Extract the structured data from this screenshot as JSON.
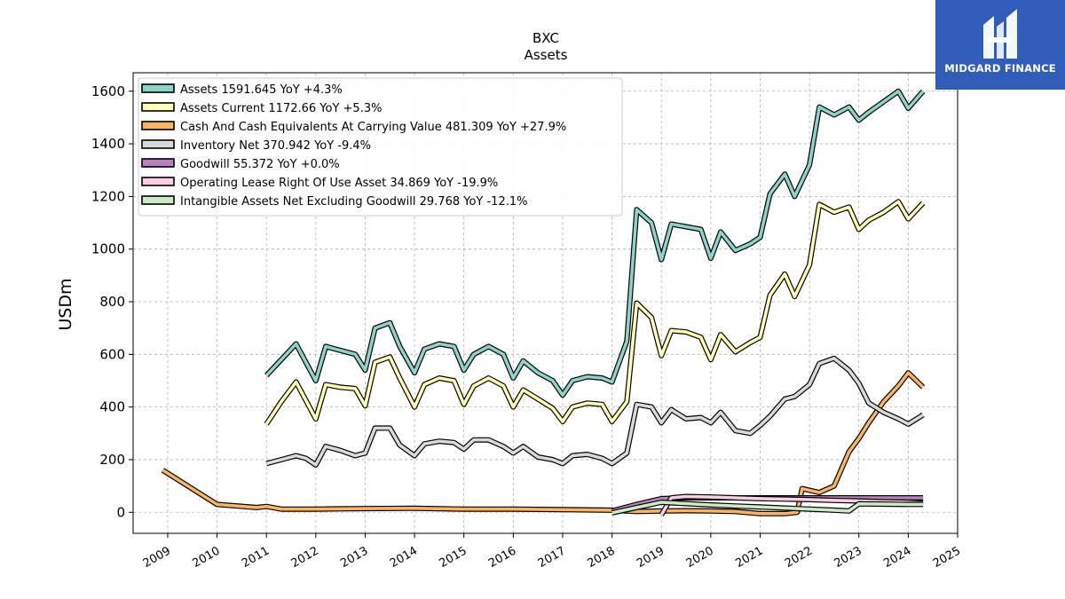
{
  "chart_data": {
    "type": "line",
    "title": "BXC",
    "subtitle": "Assets",
    "ylabel": "USDm",
    "xlim": [
      2008.3,
      2025.0
    ],
    "ylim": [
      -80,
      1670
    ],
    "xticks": [
      2009,
      2010,
      2011,
      2012,
      2013,
      2014,
      2015,
      2016,
      2017,
      2018,
      2019,
      2020,
      2021,
      2022,
      2023,
      2024,
      2025
    ],
    "yticks": [
      0,
      200,
      400,
      600,
      800,
      1000,
      1200,
      1400,
      1600
    ],
    "grid": true,
    "legend_position": "top-left",
    "series": [
      {
        "name": "Assets",
        "legend": "Assets  1591.645 YoY +4.3%",
        "color": "#8dd3c7",
        "points": [
          [
            2011.0,
            520
          ],
          [
            2011.3,
            580
          ],
          [
            2011.6,
            640
          ],
          [
            2012.0,
            500
          ],
          [
            2012.2,
            630
          ],
          [
            2012.5,
            615
          ],
          [
            2012.8,
            600
          ],
          [
            2013.0,
            540
          ],
          [
            2013.2,
            700
          ],
          [
            2013.5,
            720
          ],
          [
            2013.7,
            630
          ],
          [
            2014.0,
            530
          ],
          [
            2014.2,
            620
          ],
          [
            2014.5,
            640
          ],
          [
            2014.8,
            630
          ],
          [
            2015.0,
            540
          ],
          [
            2015.2,
            600
          ],
          [
            2015.5,
            630
          ],
          [
            2015.8,
            600
          ],
          [
            2016.0,
            510
          ],
          [
            2016.2,
            575
          ],
          [
            2016.5,
            530
          ],
          [
            2016.8,
            500
          ],
          [
            2017.0,
            445
          ],
          [
            2017.2,
            500
          ],
          [
            2017.5,
            515
          ],
          [
            2017.8,
            510
          ],
          [
            2018.0,
            495
          ],
          [
            2018.3,
            650
          ],
          [
            2018.5,
            1150
          ],
          [
            2018.8,
            1100
          ],
          [
            2019.0,
            960
          ],
          [
            2019.2,
            1095
          ],
          [
            2019.5,
            1085
          ],
          [
            2019.8,
            1075
          ],
          [
            2020.0,
            965
          ],
          [
            2020.2,
            1065
          ],
          [
            2020.5,
            995
          ],
          [
            2020.8,
            1020
          ],
          [
            2021.0,
            1045
          ],
          [
            2021.2,
            1210
          ],
          [
            2021.5,
            1285
          ],
          [
            2021.7,
            1200
          ],
          [
            2022.0,
            1320
          ],
          [
            2022.2,
            1540
          ],
          [
            2022.5,
            1510
          ],
          [
            2022.8,
            1540
          ],
          [
            2023.0,
            1490
          ],
          [
            2023.2,
            1520
          ],
          [
            2023.5,
            1560
          ],
          [
            2023.8,
            1600
          ],
          [
            2024.0,
            1535
          ],
          [
            2024.3,
            1600
          ]
        ]
      },
      {
        "name": "Assets Current",
        "legend": "Assets Current  1172.66 YoY +5.3%",
        "color": "#ffffb3",
        "points": [
          [
            2011.0,
            335
          ],
          [
            2011.3,
            420
          ],
          [
            2011.6,
            495
          ],
          [
            2012.0,
            355
          ],
          [
            2012.2,
            485
          ],
          [
            2012.5,
            475
          ],
          [
            2012.8,
            470
          ],
          [
            2013.0,
            405
          ],
          [
            2013.2,
            570
          ],
          [
            2013.5,
            590
          ],
          [
            2013.7,
            510
          ],
          [
            2014.0,
            400
          ],
          [
            2014.2,
            485
          ],
          [
            2014.5,
            510
          ],
          [
            2014.8,
            500
          ],
          [
            2015.0,
            410
          ],
          [
            2015.2,
            480
          ],
          [
            2015.5,
            510
          ],
          [
            2015.8,
            480
          ],
          [
            2016.0,
            400
          ],
          [
            2016.2,
            465
          ],
          [
            2016.5,
            430
          ],
          [
            2016.8,
            395
          ],
          [
            2017.0,
            345
          ],
          [
            2017.2,
            400
          ],
          [
            2017.5,
            415
          ],
          [
            2017.8,
            410
          ],
          [
            2018.0,
            345
          ],
          [
            2018.3,
            420
          ],
          [
            2018.5,
            795
          ],
          [
            2018.8,
            740
          ],
          [
            2019.0,
            595
          ],
          [
            2019.2,
            690
          ],
          [
            2019.5,
            685
          ],
          [
            2019.8,
            665
          ],
          [
            2020.0,
            580
          ],
          [
            2020.2,
            675
          ],
          [
            2020.5,
            610
          ],
          [
            2020.8,
            645
          ],
          [
            2021.0,
            665
          ],
          [
            2021.2,
            825
          ],
          [
            2021.5,
            905
          ],
          [
            2021.7,
            820
          ],
          [
            2022.0,
            940
          ],
          [
            2022.2,
            1170
          ],
          [
            2022.5,
            1140
          ],
          [
            2022.8,
            1160
          ],
          [
            2023.0,
            1075
          ],
          [
            2023.2,
            1110
          ],
          [
            2023.5,
            1140
          ],
          [
            2023.8,
            1180
          ],
          [
            2024.0,
            1115
          ],
          [
            2024.3,
            1175
          ]
        ]
      },
      {
        "name": "Cash And Cash Equivalents At Carrying Value",
        "legend": "Cash And Cash Equivalents At Carrying Value  481.309 YoY +27.9%",
        "color": "#fdb462",
        "points": [
          [
            2008.9,
            160
          ],
          [
            2010.0,
            30
          ],
          [
            2010.8,
            18
          ],
          [
            2011.0,
            22
          ],
          [
            2011.3,
            12
          ],
          [
            2012.0,
            12
          ],
          [
            2013.0,
            14
          ],
          [
            2014.0,
            15
          ],
          [
            2015.0,
            12
          ],
          [
            2016.0,
            12
          ],
          [
            2017.0,
            10
          ],
          [
            2018.0,
            8
          ],
          [
            2018.5,
            3
          ],
          [
            2019.0,
            5
          ],
          [
            2019.5,
            6
          ],
          [
            2020.0,
            5
          ],
          [
            2020.5,
            3
          ],
          [
            2021.0,
            -5
          ],
          [
            2021.5,
            -5
          ],
          [
            2021.75,
            0
          ],
          [
            2021.85,
            90
          ],
          [
            2022.2,
            75
          ],
          [
            2022.5,
            100
          ],
          [
            2022.8,
            230
          ],
          [
            2023.0,
            280
          ],
          [
            2023.2,
            340
          ],
          [
            2023.5,
            420
          ],
          [
            2023.8,
            480
          ],
          [
            2024.0,
            530
          ],
          [
            2024.3,
            475
          ]
        ]
      },
      {
        "name": "Inventory Net",
        "legend": "Inventory Net  370.942 YoY -9.4%",
        "color": "#d9d9d9",
        "points": [
          [
            2011.0,
            185
          ],
          [
            2011.3,
            200
          ],
          [
            2011.6,
            215
          ],
          [
            2011.8,
            205
          ],
          [
            2012.0,
            180
          ],
          [
            2012.2,
            250
          ],
          [
            2012.5,
            235
          ],
          [
            2012.8,
            215
          ],
          [
            2013.0,
            225
          ],
          [
            2013.2,
            320
          ],
          [
            2013.5,
            320
          ],
          [
            2013.7,
            255
          ],
          [
            2014.0,
            215
          ],
          [
            2014.2,
            260
          ],
          [
            2014.5,
            270
          ],
          [
            2014.8,
            265
          ],
          [
            2015.0,
            240
          ],
          [
            2015.2,
            275
          ],
          [
            2015.5,
            275
          ],
          [
            2015.8,
            250
          ],
          [
            2016.0,
            225
          ],
          [
            2016.2,
            250
          ],
          [
            2016.5,
            210
          ],
          [
            2016.8,
            200
          ],
          [
            2017.0,
            185
          ],
          [
            2017.2,
            215
          ],
          [
            2017.5,
            220
          ],
          [
            2017.8,
            205
          ],
          [
            2018.0,
            185
          ],
          [
            2018.3,
            225
          ],
          [
            2018.5,
            410
          ],
          [
            2018.8,
            400
          ],
          [
            2019.0,
            340
          ],
          [
            2019.2,
            390
          ],
          [
            2019.5,
            355
          ],
          [
            2019.8,
            360
          ],
          [
            2020.0,
            340
          ],
          [
            2020.2,
            380
          ],
          [
            2020.5,
            310
          ],
          [
            2020.8,
            300
          ],
          [
            2021.0,
            330
          ],
          [
            2021.2,
            365
          ],
          [
            2021.5,
            430
          ],
          [
            2021.7,
            440
          ],
          [
            2022.0,
            485
          ],
          [
            2022.2,
            565
          ],
          [
            2022.5,
            585
          ],
          [
            2022.8,
            540
          ],
          [
            2023.0,
            490
          ],
          [
            2023.2,
            415
          ],
          [
            2023.5,
            380
          ],
          [
            2023.8,
            355
          ],
          [
            2024.0,
            335
          ],
          [
            2024.3,
            370
          ]
        ]
      },
      {
        "name": "Goodwill",
        "legend": "Goodwill  55.372 YoY +0.0%",
        "color": "#bc80bd",
        "points": [
          [
            2018.0,
            5
          ],
          [
            2018.5,
            30
          ],
          [
            2019.0,
            52
          ],
          [
            2019.5,
            55
          ],
          [
            2020.0,
            55
          ],
          [
            2021.0,
            55
          ],
          [
            2022.0,
            55
          ],
          [
            2023.0,
            55
          ],
          [
            2024.0,
            55
          ],
          [
            2024.3,
            55
          ]
        ]
      },
      {
        "name": "Operating Lease Right Of Use Asset",
        "legend": "Operating Lease Right Of Use Asset  34.869 YoY -19.9%",
        "color": "#fccde5",
        "points": [
          [
            2019.0,
            -10
          ],
          [
            2019.2,
            55
          ],
          [
            2019.5,
            60
          ],
          [
            2020.0,
            58
          ],
          [
            2020.5,
            55
          ],
          [
            2021.0,
            52
          ],
          [
            2021.5,
            50
          ],
          [
            2022.0,
            48
          ],
          [
            2022.5,
            45
          ],
          [
            2022.8,
            44
          ],
          [
            2023.0,
            43
          ],
          [
            2023.5,
            40
          ],
          [
            2024.0,
            38
          ],
          [
            2024.3,
            35
          ]
        ]
      },
      {
        "name": "Intangible Assets Net Excluding Goodwill",
        "legend": "Intangible Assets Net Excluding Goodwill  29.768 YoY -12.1%",
        "color": "#ccebc5",
        "points": [
          [
            2018.0,
            -2
          ],
          [
            2018.5,
            18
          ],
          [
            2019.0,
            38
          ],
          [
            2019.5,
            33
          ],
          [
            2020.0,
            28
          ],
          [
            2020.5,
            24
          ],
          [
            2021.0,
            20
          ],
          [
            2021.5,
            16
          ],
          [
            2022.0,
            12
          ],
          [
            2022.5,
            8
          ],
          [
            2022.8,
            5
          ],
          [
            2023.0,
            32
          ],
          [
            2023.5,
            31
          ],
          [
            2024.0,
            30
          ],
          [
            2024.3,
            30
          ]
        ]
      }
    ]
  },
  "logo": {
    "text": "MIDGARD FINANCE",
    "color": "#2f5db8"
  }
}
